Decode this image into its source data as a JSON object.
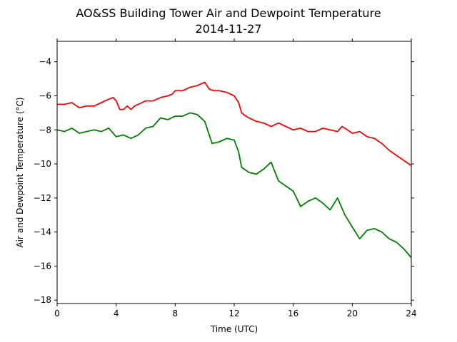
{
  "chart_data": {
    "type": "line",
    "title": "AO&SS Building Tower Air and Dewpoint Temperature",
    "subtitle": "2014-11-27",
    "xlabel": "Time (UTC)",
    "ylabel": "Air and Dewpoint Temperature (°C)",
    "xlim": [
      0,
      24
    ],
    "ylim": [
      -18.2,
      -2.8
    ],
    "xticks": [
      0,
      4,
      8,
      12,
      16,
      20,
      24
    ],
    "yticks": [
      -18,
      -16,
      -14,
      -12,
      -10,
      -8,
      -6,
      -4
    ],
    "grid": false,
    "legend": "none",
    "colors": {
      "air": "#ff0000",
      "dewpoint": "#008000"
    },
    "series": [
      {
        "x": [
          0,
          0.5,
          1,
          1.5,
          2,
          2.5,
          3,
          3.5,
          3.8,
          4,
          4.25,
          4.5,
          4.75,
          5,
          5.25,
          5.5,
          6,
          6.5,
          7,
          7.5,
          7.8,
          8,
          8.5,
          9,
          9.5,
          10,
          10.3,
          10.6,
          11,
          11.5,
          12,
          12.3,
          12.5,
          12.8,
          13,
          13.5,
          14,
          14.5,
          15,
          15.5,
          16,
          16.5,
          17,
          17.5,
          18,
          18.5,
          19,
          19.3,
          19.5,
          20,
          20.5,
          21,
          21.5,
          22,
          22.5,
          23,
          23.5,
          24
        ],
        "values": [
          -6.5,
          -6.5,
          -6.4,
          -6.7,
          -6.6,
          -6.6,
          -6.4,
          -6.2,
          -6.1,
          -6.3,
          -6.8,
          -6.8,
          -6.6,
          -6.8,
          -6.6,
          -6.5,
          -6.3,
          -6.3,
          -6.1,
          -6.0,
          -5.9,
          -5.7,
          -5.7,
          -5.5,
          -5.4,
          -5.2,
          -5.6,
          -5.7,
          -5.7,
          -5.8,
          -6.0,
          -6.4,
          -7.0,
          -7.2,
          -7.3,
          -7.5,
          -7.6,
          -7.8,
          -7.6,
          -7.8,
          -8.0,
          -7.9,
          -8.1,
          -8.1,
          -7.9,
          -8.0,
          -8.1,
          -7.8,
          -7.9,
          -8.2,
          -8.1,
          -8.4,
          -8.5,
          -8.8,
          -9.2,
          -9.5,
          -9.8,
          -10.1
        ]
      },
      {
        "x": [
          0,
          0.5,
          1,
          1.5,
          2,
          2.5,
          3,
          3.5,
          4,
          4.5,
          5,
          5.5,
          6,
          6.5,
          7,
          7.5,
          8,
          8.5,
          9,
          9.5,
          10,
          10.5,
          11,
          11.5,
          12,
          12.3,
          12.5,
          13,
          13.5,
          14,
          14.5,
          15,
          15.5,
          16,
          16.5,
          17,
          17.5,
          18,
          18.5,
          19,
          19.3,
          19.5,
          20,
          20.5,
          21,
          21.5,
          22,
          22.5,
          23,
          23.5,
          24
        ],
        "values": [
          -8.0,
          -8.1,
          -7.9,
          -8.2,
          -8.1,
          -8.0,
          -8.1,
          -7.9,
          -8.4,
          -8.3,
          -8.5,
          -8.3,
          -7.9,
          -7.8,
          -7.3,
          -7.4,
          -7.2,
          -7.2,
          -7.0,
          -7.1,
          -7.5,
          -8.8,
          -8.7,
          -8.5,
          -8.6,
          -9.3,
          -10.2,
          -10.5,
          -10.6,
          -10.3,
          -9.9,
          -11.0,
          -11.3,
          -11.6,
          -12.5,
          -12.2,
          -12.0,
          -12.3,
          -12.7,
          -12.0,
          -12.6,
          -13.0,
          -13.7,
          -14.4,
          -13.9,
          -13.8,
          -14.0,
          -14.4,
          -14.6,
          -15.0,
          -15.5
        ]
      }
    ]
  }
}
